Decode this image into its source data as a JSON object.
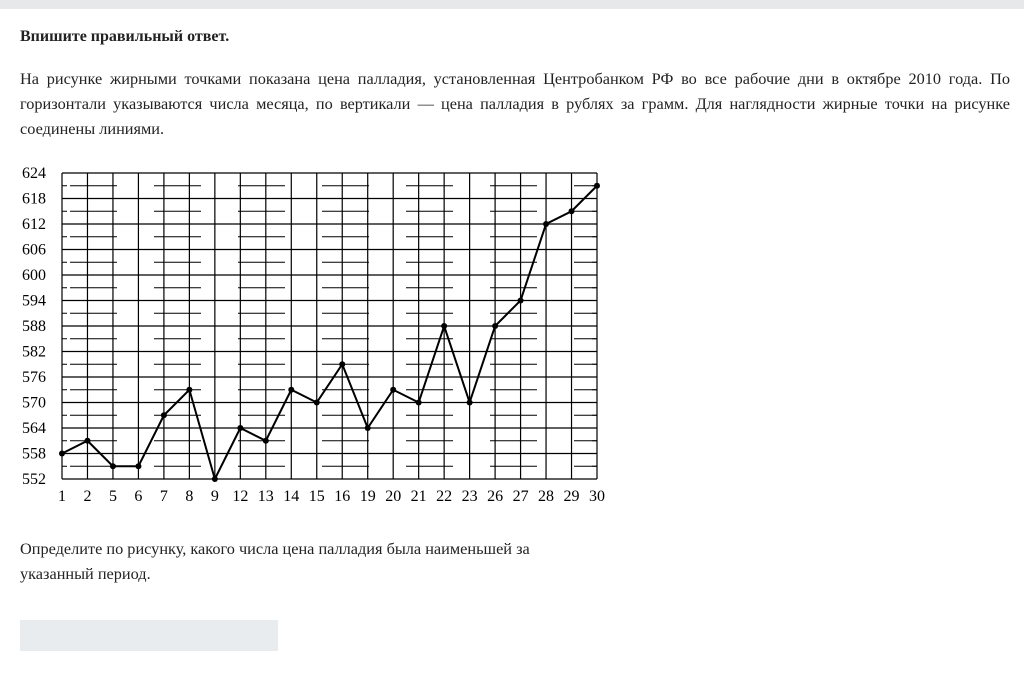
{
  "instruction": "Впишите правильный ответ.",
  "problem": "На рисунке жирными точками показана цена палладия, установленная Центробанком РФ во все рабочие дни в октябре 2010 года. По горизонтали указываются числа месяца, по вертикали — цена палладия в рублях за грамм. Для наглядности жирные точки на рисунке соединены линиями.",
  "question": "Определите по рисунку, какого числа цена палладия была наименьшей за указанный период.",
  "answer": {
    "value": "",
    "placeholder": ""
  },
  "chart_data": {
    "type": "line",
    "categories": [
      "1",
      "2",
      "5",
      "6",
      "7",
      "8",
      "9",
      "12",
      "13",
      "14",
      "15",
      "16",
      "19",
      "20",
      "21",
      "22",
      "23",
      "26",
      "27",
      "28",
      "29",
      "30"
    ],
    "values": [
      558,
      561,
      555,
      555,
      567,
      573,
      552,
      564,
      561,
      573,
      570,
      579,
      564,
      573,
      570,
      588,
      570,
      588,
      594,
      612,
      615,
      621
    ],
    "yticks": [
      "552",
      "558",
      "564",
      "570",
      "576",
      "582",
      "588",
      "594",
      "600",
      "606",
      "612",
      "618",
      "624"
    ],
    "ylim": [
      552,
      624
    ],
    "grid": true,
    "line_color": "#000000"
  }
}
